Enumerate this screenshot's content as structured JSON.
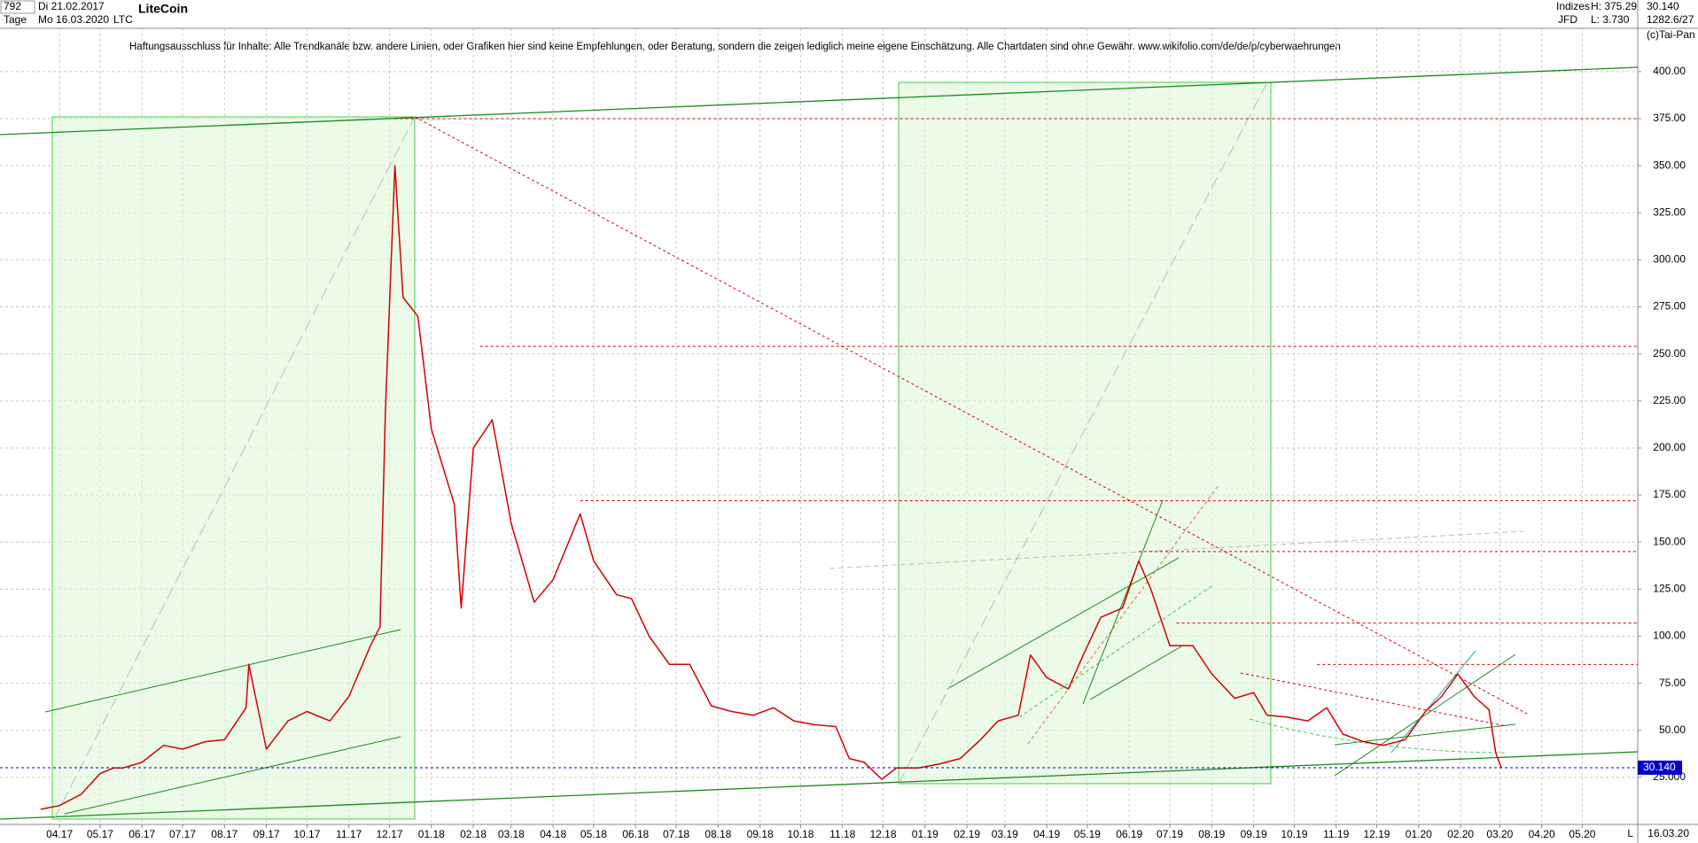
{
  "chart_data": {
    "type": "line",
    "title": "LiteCoin",
    "header": {
      "bars": "792",
      "start": "Di 21.02.2017",
      "period": "Tage",
      "end": "Mo 16.03.2020",
      "symbol": "LTC",
      "group": "Indizes",
      "source": "JFD",
      "high": "H: 375.29",
      "low": "L: 3.730",
      "last": "30.140",
      "volume": "1282.6/27",
      "copyright": "(c)Tai-Pan",
      "date_corner": "16.03.20",
      "scale_mode": "L"
    },
    "subtitle": "Haftungsausschluss für Inhalte: Alle Trendkanäle bzw. andere Linien, oder Grafiken hier sind keine Empfehlungen, oder Beratung, sondern die zeigen lediglich meine eigene Einschätzung. Alle Chartdaten sind ohne Gewähr.  www.wikifolio.com/de/de/p/cyberwaehrungen",
    "x": [
      "2017-04-01",
      "2017-04-15",
      "2017-05-01",
      "2017-05-15",
      "2017-05-25",
      "2017-06-01",
      "2017-06-15",
      "2017-07-01",
      "2017-07-15",
      "2017-08-01",
      "2017-08-15",
      "2017-08-31",
      "2017-09-02",
      "2017-09-15",
      "2017-10-01",
      "2017-10-15",
      "2017-11-01",
      "2017-11-15",
      "2017-12-01",
      "2017-12-08",
      "2017-12-12",
      "2017-12-19",
      "2017-12-25",
      "2018-01-05",
      "2018-01-15",
      "2018-02-01",
      "2018-02-06",
      "2018-02-15",
      "2018-03-01",
      "2018-03-15",
      "2018-04-01",
      "2018-04-15",
      "2018-05-05",
      "2018-05-15",
      "2018-06-01",
      "2018-06-12",
      "2018-06-25",
      "2018-07-10",
      "2018-07-25",
      "2018-08-10",
      "2018-08-25",
      "2018-09-10",
      "2018-09-25",
      "2018-10-10",
      "2018-10-25",
      "2018-11-10",
      "2018-11-20",
      "2018-12-01",
      "2018-12-14",
      "2018-12-25",
      "2019-01-10",
      "2019-01-25",
      "2019-02-10",
      "2019-02-25",
      "2019-03-10",
      "2019-03-25",
      "2019-04-03",
      "2019-04-15",
      "2019-05-01",
      "2019-05-12",
      "2019-05-25",
      "2019-06-10",
      "2019-06-22",
      "2019-07-01",
      "2019-07-15",
      "2019-08-01",
      "2019-08-15",
      "2019-09-01",
      "2019-09-15",
      "2019-09-25",
      "2019-10-10",
      "2019-10-25",
      "2019-11-08",
      "2019-11-20",
      "2019-12-05",
      "2019-12-20",
      "2020-01-05",
      "2020-01-20",
      "2020-02-01",
      "2020-02-13",
      "2020-02-25",
      "2020-03-07",
      "2020-03-12",
      "2020-03-16"
    ],
    "series": [
      {
        "name": "LTC",
        "color": "#d40000",
        "values": [
          8,
          10,
          16,
          27,
          30,
          30,
          33,
          42,
          40,
          44,
          45,
          62,
          85,
          40,
          55,
          60,
          55,
          68,
          95,
          105,
          220,
          350,
          280,
          270,
          210,
          170,
          115,
          200,
          215,
          160,
          118,
          130,
          165,
          140,
          122,
          120,
          100,
          85,
          85,
          63,
          60,
          58,
          62,
          55,
          53,
          52,
          35,
          33,
          24,
          30,
          30,
          32,
          35,
          45,
          55,
          58,
          90,
          78,
          72,
          90,
          110,
          115,
          140,
          125,
          95,
          95,
          80,
          67,
          70,
          58,
          57,
          55,
          62,
          48,
          44,
          42,
          45,
          60,
          68,
          80,
          68,
          61,
          38,
          30.14
        ]
      }
    ],
    "current": {
      "value": 30.14,
      "label": "30.140",
      "color": "#0000cc"
    },
    "levels": [
      {
        "value": 375,
        "from": "2017-12-19"
      },
      {
        "value": 254,
        "from": "2018-02-20"
      },
      {
        "value": 172,
        "from": "2018-05-05"
      },
      {
        "value": 145,
        "from": "2019-06-22"
      },
      {
        "value": 107,
        "from": "2019-07-20"
      },
      {
        "value": 85,
        "from": "2019-11-01"
      }
    ],
    "level_color": "#d40000",
    "xlim": [
      "2017-03-02",
      "2020-06-25"
    ],
    "xticks": [
      {
        "value": "2017-04-15",
        "label": "04.17"
      },
      {
        "value": "2017-05-15",
        "label": "05.17"
      },
      {
        "value": "2017-06-15",
        "label": "06.17"
      },
      {
        "value": "2017-07-15",
        "label": "07.17"
      },
      {
        "value": "2017-08-15",
        "label": "08.17"
      },
      {
        "value": "2017-09-15",
        "label": "09.17"
      },
      {
        "value": "2017-10-15",
        "label": "10.17"
      },
      {
        "value": "2017-11-15",
        "label": "11.17"
      },
      {
        "value": "2017-12-15",
        "label": "12.17"
      },
      {
        "value": "2018-01-15",
        "label": "01.18"
      },
      {
        "value": "2018-02-15",
        "label": "02.18"
      },
      {
        "value": "2018-03-15",
        "label": "03.18"
      },
      {
        "value": "2018-04-15",
        "label": "04.18"
      },
      {
        "value": "2018-05-15",
        "label": "05.18"
      },
      {
        "value": "2018-06-15",
        "label": "06.18"
      },
      {
        "value": "2018-07-15",
        "label": "07.18"
      },
      {
        "value": "2018-08-15",
        "label": "08.18"
      },
      {
        "value": "2018-09-15",
        "label": "09.18"
      },
      {
        "value": "2018-10-15",
        "label": "10.18"
      },
      {
        "value": "2018-11-15",
        "label": "11.18"
      },
      {
        "value": "2018-12-15",
        "label": "12.18"
      },
      {
        "value": "2019-01-15",
        "label": "01.19"
      },
      {
        "value": "2019-02-15",
        "label": "02.19"
      },
      {
        "value": "2019-03-15",
        "label": "03.19"
      },
      {
        "value": "2019-04-15",
        "label": "04.19"
      },
      {
        "value": "2019-05-15",
        "label": "05.19"
      },
      {
        "value": "2019-06-15",
        "label": "06.19"
      },
      {
        "value": "2019-07-15",
        "label": "07.19"
      },
      {
        "value": "2019-08-15",
        "label": "08.19"
      },
      {
        "value": "2019-09-15",
        "label": "09.19"
      },
      {
        "value": "2019-10-15",
        "label": "10.19"
      },
      {
        "value": "2019-11-15",
        "label": "11.19"
      },
      {
        "value": "2019-12-15",
        "label": "12.19"
      },
      {
        "value": "2020-01-15",
        "label": "01.20"
      },
      {
        "value": "2020-02-15",
        "label": "02.20"
      },
      {
        "value": "2020-03-15",
        "label": "03.20"
      },
      {
        "value": "2020-04-15",
        "label": "04.20"
      },
      {
        "value": "2020-05-15",
        "label": "05.20"
      }
    ],
    "ylim": [
      0,
      423
    ],
    "yticks": [
      {
        "value": 25,
        "label": "25.000"
      },
      {
        "value": 50,
        "label": "50.00"
      },
      {
        "value": 75,
        "label": "75.00"
      },
      {
        "value": 100,
        "label": "100.00"
      },
      {
        "value": 125,
        "label": "125.00"
      },
      {
        "value": 150,
        "label": "150.00"
      },
      {
        "value": 175,
        "label": "175.00"
      },
      {
        "value": 200,
        "label": "200.00"
      },
      {
        "value": 225,
        "label": "225.00"
      },
      {
        "value": 250,
        "label": "250.00"
      },
      {
        "value": 275,
        "label": "275.00"
      },
      {
        "value": 300,
        "label": "300.00"
      },
      {
        "value": 325,
        "label": "325.00"
      },
      {
        "value": 350,
        "label": "350.00"
      },
      {
        "value": 375,
        "label": "375.00"
      },
      {
        "value": 400,
        "label": "400.00"
      }
    ],
    "grid": true
  }
}
